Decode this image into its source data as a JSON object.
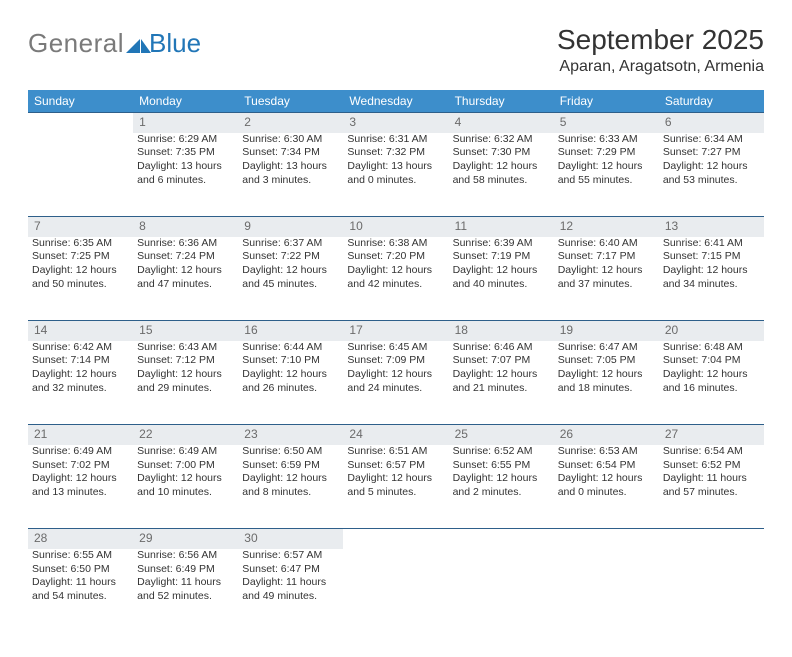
{
  "logo": {
    "part1": "General",
    "part2": "Blue"
  },
  "title": "September 2025",
  "location": "Aparan, Aragatsotn, Armenia",
  "colors": {
    "header_bg": "#3d8ecb",
    "header_border": "#2e5f8a",
    "daynum_bg": "#e9ecef",
    "text": "#333333",
    "logo_gray": "#7a7a7a",
    "logo_blue": "#2176b7"
  },
  "weekdays": [
    "Sunday",
    "Monday",
    "Tuesday",
    "Wednesday",
    "Thursday",
    "Friday",
    "Saturday"
  ],
  "weeks": [
    {
      "nums": [
        "",
        "1",
        "2",
        "3",
        "4",
        "5",
        "6"
      ],
      "cells": [
        null,
        {
          "sunrise": "Sunrise: 6:29 AM",
          "sunset": "Sunset: 7:35 PM",
          "day1": "Daylight: 13 hours",
          "day2": "and 6 minutes."
        },
        {
          "sunrise": "Sunrise: 6:30 AM",
          "sunset": "Sunset: 7:34 PM",
          "day1": "Daylight: 13 hours",
          "day2": "and 3 minutes."
        },
        {
          "sunrise": "Sunrise: 6:31 AM",
          "sunset": "Sunset: 7:32 PM",
          "day1": "Daylight: 13 hours",
          "day2": "and 0 minutes."
        },
        {
          "sunrise": "Sunrise: 6:32 AM",
          "sunset": "Sunset: 7:30 PM",
          "day1": "Daylight: 12 hours",
          "day2": "and 58 minutes."
        },
        {
          "sunrise": "Sunrise: 6:33 AM",
          "sunset": "Sunset: 7:29 PM",
          "day1": "Daylight: 12 hours",
          "day2": "and 55 minutes."
        },
        {
          "sunrise": "Sunrise: 6:34 AM",
          "sunset": "Sunset: 7:27 PM",
          "day1": "Daylight: 12 hours",
          "day2": "and 53 minutes."
        }
      ]
    },
    {
      "nums": [
        "7",
        "8",
        "9",
        "10",
        "11",
        "12",
        "13"
      ],
      "cells": [
        {
          "sunrise": "Sunrise: 6:35 AM",
          "sunset": "Sunset: 7:25 PM",
          "day1": "Daylight: 12 hours",
          "day2": "and 50 minutes."
        },
        {
          "sunrise": "Sunrise: 6:36 AM",
          "sunset": "Sunset: 7:24 PM",
          "day1": "Daylight: 12 hours",
          "day2": "and 47 minutes."
        },
        {
          "sunrise": "Sunrise: 6:37 AM",
          "sunset": "Sunset: 7:22 PM",
          "day1": "Daylight: 12 hours",
          "day2": "and 45 minutes."
        },
        {
          "sunrise": "Sunrise: 6:38 AM",
          "sunset": "Sunset: 7:20 PM",
          "day1": "Daylight: 12 hours",
          "day2": "and 42 minutes."
        },
        {
          "sunrise": "Sunrise: 6:39 AM",
          "sunset": "Sunset: 7:19 PM",
          "day1": "Daylight: 12 hours",
          "day2": "and 40 minutes."
        },
        {
          "sunrise": "Sunrise: 6:40 AM",
          "sunset": "Sunset: 7:17 PM",
          "day1": "Daylight: 12 hours",
          "day2": "and 37 minutes."
        },
        {
          "sunrise": "Sunrise: 6:41 AM",
          "sunset": "Sunset: 7:15 PM",
          "day1": "Daylight: 12 hours",
          "day2": "and 34 minutes."
        }
      ]
    },
    {
      "nums": [
        "14",
        "15",
        "16",
        "17",
        "18",
        "19",
        "20"
      ],
      "cells": [
        {
          "sunrise": "Sunrise: 6:42 AM",
          "sunset": "Sunset: 7:14 PM",
          "day1": "Daylight: 12 hours",
          "day2": "and 32 minutes."
        },
        {
          "sunrise": "Sunrise: 6:43 AM",
          "sunset": "Sunset: 7:12 PM",
          "day1": "Daylight: 12 hours",
          "day2": "and 29 minutes."
        },
        {
          "sunrise": "Sunrise: 6:44 AM",
          "sunset": "Sunset: 7:10 PM",
          "day1": "Daylight: 12 hours",
          "day2": "and 26 minutes."
        },
        {
          "sunrise": "Sunrise: 6:45 AM",
          "sunset": "Sunset: 7:09 PM",
          "day1": "Daylight: 12 hours",
          "day2": "and 24 minutes."
        },
        {
          "sunrise": "Sunrise: 6:46 AM",
          "sunset": "Sunset: 7:07 PM",
          "day1": "Daylight: 12 hours",
          "day2": "and 21 minutes."
        },
        {
          "sunrise": "Sunrise: 6:47 AM",
          "sunset": "Sunset: 7:05 PM",
          "day1": "Daylight: 12 hours",
          "day2": "and 18 minutes."
        },
        {
          "sunrise": "Sunrise: 6:48 AM",
          "sunset": "Sunset: 7:04 PM",
          "day1": "Daylight: 12 hours",
          "day2": "and 16 minutes."
        }
      ]
    },
    {
      "nums": [
        "21",
        "22",
        "23",
        "24",
        "25",
        "26",
        "27"
      ],
      "cells": [
        {
          "sunrise": "Sunrise: 6:49 AM",
          "sunset": "Sunset: 7:02 PM",
          "day1": "Daylight: 12 hours",
          "day2": "and 13 minutes."
        },
        {
          "sunrise": "Sunrise: 6:49 AM",
          "sunset": "Sunset: 7:00 PM",
          "day1": "Daylight: 12 hours",
          "day2": "and 10 minutes."
        },
        {
          "sunrise": "Sunrise: 6:50 AM",
          "sunset": "Sunset: 6:59 PM",
          "day1": "Daylight: 12 hours",
          "day2": "and 8 minutes."
        },
        {
          "sunrise": "Sunrise: 6:51 AM",
          "sunset": "Sunset: 6:57 PM",
          "day1": "Daylight: 12 hours",
          "day2": "and 5 minutes."
        },
        {
          "sunrise": "Sunrise: 6:52 AM",
          "sunset": "Sunset: 6:55 PM",
          "day1": "Daylight: 12 hours",
          "day2": "and 2 minutes."
        },
        {
          "sunrise": "Sunrise: 6:53 AM",
          "sunset": "Sunset: 6:54 PM",
          "day1": "Daylight: 12 hours",
          "day2": "and 0 minutes."
        },
        {
          "sunrise": "Sunrise: 6:54 AM",
          "sunset": "Sunset: 6:52 PM",
          "day1": "Daylight: 11 hours",
          "day2": "and 57 minutes."
        }
      ]
    },
    {
      "nums": [
        "28",
        "29",
        "30",
        "",
        "",
        "",
        ""
      ],
      "cells": [
        {
          "sunrise": "Sunrise: 6:55 AM",
          "sunset": "Sunset: 6:50 PM",
          "day1": "Daylight: 11 hours",
          "day2": "and 54 minutes."
        },
        {
          "sunrise": "Sunrise: 6:56 AM",
          "sunset": "Sunset: 6:49 PM",
          "day1": "Daylight: 11 hours",
          "day2": "and 52 minutes."
        },
        {
          "sunrise": "Sunrise: 6:57 AM",
          "sunset": "Sunset: 6:47 PM",
          "day1": "Daylight: 11 hours",
          "day2": "and 49 minutes."
        },
        null,
        null,
        null,
        null
      ]
    }
  ]
}
